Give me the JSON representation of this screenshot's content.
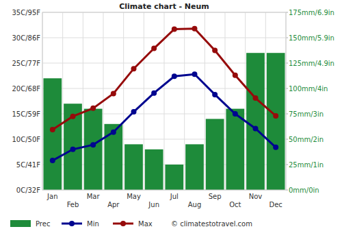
{
  "chart_data": {
    "type": "bar",
    "title": "Climate chart - Neum",
    "categories": [
      "Jan",
      "Feb",
      "Mar",
      "Apr",
      "May",
      "Jun",
      "Jul",
      "Aug",
      "Sep",
      "Oct",
      "Nov",
      "Dec"
    ],
    "series": [
      {
        "name": "Prec",
        "type": "bar",
        "axis": "y2",
        "color": "#1e8b3a",
        "values": [
          110,
          85,
          80,
          65,
          45,
          40,
          25,
          45,
          70,
          80,
          135,
          135
        ]
      },
      {
        "name": "Min",
        "type": "line",
        "axis": "y",
        "color": "#00058f",
        "marker": "circle",
        "values": [
          5.8,
          8.0,
          8.9,
          11.4,
          15.4,
          19.1,
          22.4,
          22.8,
          18.8,
          15.0,
          12.1,
          8.4
        ]
      },
      {
        "name": "Max",
        "type": "line",
        "axis": "y",
        "color": "#960b0b",
        "marker": "circle",
        "values": [
          11.9,
          14.5,
          16.1,
          19.0,
          23.9,
          27.9,
          31.7,
          31.8,
          27.5,
          22.6,
          18.1,
          14.6
        ]
      }
    ],
    "ylim": [
      0,
      35
    ],
    "yticks": [
      {
        "value": 0,
        "label": "0C/32F"
      },
      {
        "value": 5,
        "label": "5C/41F"
      },
      {
        "value": 10,
        "label": "10C/50F"
      },
      {
        "value": 15,
        "label": "15C/59F"
      },
      {
        "value": 20,
        "label": "20C/68F"
      },
      {
        "value": 25,
        "label": "25C/77F"
      },
      {
        "value": 30,
        "label": "30C/86F"
      },
      {
        "value": 35,
        "label": "35C/95F"
      }
    ],
    "y2lim": [
      0,
      175
    ],
    "y2ticks": [
      {
        "value": 0,
        "label": "0mm/0in"
      },
      {
        "value": 25,
        "label": "25mm/1in"
      },
      {
        "value": 50,
        "label": "50mm/2in"
      },
      {
        "value": 75,
        "label": "75mm/3in"
      },
      {
        "value": 100,
        "label": "100mm/4in"
      },
      {
        "value": 125,
        "label": "125mm/4.9in"
      },
      {
        "value": 150,
        "label": "150mm/5.9in"
      },
      {
        "value": 175,
        "label": "175mm/6.9in"
      }
    ],
    "grid": true,
    "legend": "bottom",
    "annotations": [
      "© climatestotravel.com"
    ]
  }
}
